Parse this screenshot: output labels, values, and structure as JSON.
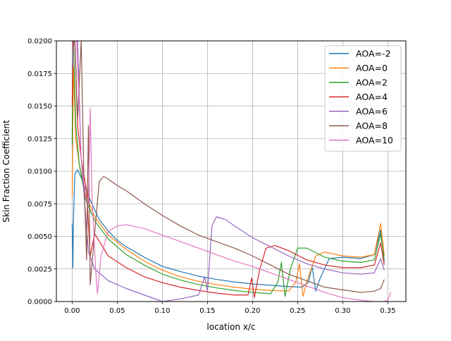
{
  "chart_data": {
    "type": "line",
    "title": "",
    "xlabel": "location x/c",
    "ylabel": "Skin Fraction Coefficient",
    "xlim": [
      -0.0175,
      0.37
    ],
    "ylim": [
      0,
      0.02
    ],
    "xticks": [
      0.0,
      0.05,
      0.1,
      0.15,
      0.2,
      0.25,
      0.3,
      0.35
    ],
    "xtick_labels": [
      "0.00",
      "0.05",
      "0.10",
      "0.15",
      "0.20",
      "0.25",
      "0.30",
      "0.35"
    ],
    "yticks": [
      0.0,
      0.0025,
      0.005,
      0.0075,
      0.01,
      0.0125,
      0.015,
      0.0175,
      0.02
    ],
    "ytick_labels": [
      "0.0000",
      "0.0025",
      "0.0050",
      "0.0075",
      "0.0100",
      "0.0125",
      "0.0150",
      "0.0175",
      "0.0200"
    ],
    "grid": true,
    "legend": "top-right",
    "series": [
      {
        "name": "AOA=-2",
        "color": "#1f77b4",
        "points": [
          [
            0.0,
            0.006
          ],
          [
            0.0008,
            0.0026
          ],
          [
            0.0015,
            0.0065
          ],
          [
            0.003,
            0.0098
          ],
          [
            0.006,
            0.0101
          ],
          [
            0.01,
            0.0095
          ],
          [
            0.02,
            0.0078
          ],
          [
            0.03,
            0.0063
          ],
          [
            0.04,
            0.0054
          ],
          [
            0.05,
            0.0047
          ],
          [
            0.06,
            0.0042
          ],
          [
            0.08,
            0.0034
          ],
          [
            0.1,
            0.0027
          ],
          [
            0.12,
            0.0023
          ],
          [
            0.14,
            0.00195
          ],
          [
            0.16,
            0.0017
          ],
          [
            0.18,
            0.0015
          ],
          [
            0.2,
            0.00135
          ],
          [
            0.22,
            0.00125
          ],
          [
            0.24,
            0.00115
          ],
          [
            0.255,
            0.0011
          ],
          [
            0.262,
            0.0015
          ],
          [
            0.266,
            0.0027
          ],
          [
            0.27,
            0.0008
          ],
          [
            0.275,
            0.0018
          ],
          [
            0.285,
            0.0033
          ],
          [
            0.3,
            0.0034
          ],
          [
            0.32,
            0.0033
          ],
          [
            0.335,
            0.0036
          ],
          [
            0.342,
            0.0055
          ],
          [
            0.346,
            0.003
          ]
        ]
      },
      {
        "name": "AOA=0",
        "color": "#ff7f0e",
        "points": [
          [
            0.0,
            0.008
          ],
          [
            0.0008,
            0.014
          ],
          [
            0.0015,
            0.018
          ],
          [
            0.004,
            0.0125
          ],
          [
            0.008,
            0.0105
          ],
          [
            0.015,
            0.0082
          ],
          [
            0.025,
            0.0065
          ],
          [
            0.04,
            0.0051
          ],
          [
            0.06,
            0.004
          ],
          [
            0.08,
            0.0031
          ],
          [
            0.1,
            0.0024
          ],
          [
            0.12,
            0.0019
          ],
          [
            0.14,
            0.00155
          ],
          [
            0.16,
            0.0013
          ],
          [
            0.18,
            0.0011
          ],
          [
            0.2,
            0.00095
          ],
          [
            0.22,
            0.00085
          ],
          [
            0.24,
            0.0008
          ],
          [
            0.248,
            0.0015
          ],
          [
            0.252,
            0.0029
          ],
          [
            0.256,
            0.0004
          ],
          [
            0.26,
            0.0015
          ],
          [
            0.27,
            0.0035
          ],
          [
            0.28,
            0.0038
          ],
          [
            0.3,
            0.0035
          ],
          [
            0.32,
            0.0034
          ],
          [
            0.335,
            0.0036
          ],
          [
            0.342,
            0.006
          ],
          [
            0.346,
            0.0035
          ]
        ]
      },
      {
        "name": "AOA=2",
        "color": "#2ca02c",
        "points": [
          [
            0.0,
            0.012
          ],
          [
            0.0008,
            0.02
          ],
          [
            0.0015,
            0.02
          ],
          [
            0.004,
            0.0135
          ],
          [
            0.008,
            0.0105
          ],
          [
            0.015,
            0.0078
          ],
          [
            0.025,
            0.0062
          ],
          [
            0.04,
            0.0048
          ],
          [
            0.06,
            0.0036
          ],
          [
            0.08,
            0.0028
          ],
          [
            0.1,
            0.0021
          ],
          [
            0.12,
            0.00165
          ],
          [
            0.14,
            0.0013
          ],
          [
            0.16,
            0.00105
          ],
          [
            0.18,
            0.00085
          ],
          [
            0.2,
            0.0007
          ],
          [
            0.22,
            0.0006
          ],
          [
            0.228,
            0.0015
          ],
          [
            0.232,
            0.003
          ],
          [
            0.236,
            0.0004
          ],
          [
            0.242,
            0.0025
          ],
          [
            0.25,
            0.0041
          ],
          [
            0.26,
            0.0041
          ],
          [
            0.28,
            0.0034
          ],
          [
            0.3,
            0.0031
          ],
          [
            0.32,
            0.003
          ],
          [
            0.335,
            0.0032
          ],
          [
            0.342,
            0.0052
          ],
          [
            0.346,
            0.0032
          ]
        ]
      },
      {
        "name": "AOA=4",
        "color": "#d62728",
        "points": [
          [
            0.0,
            0.015
          ],
          [
            0.001,
            0.02
          ],
          [
            0.003,
            0.02
          ],
          [
            0.006,
            0.0135
          ],
          [
            0.01,
            0.011
          ],
          [
            0.016,
            0.0085
          ],
          [
            0.02,
            0.0035
          ],
          [
            0.025,
            0.0052
          ],
          [
            0.04,
            0.0035
          ],
          [
            0.06,
            0.0026
          ],
          [
            0.08,
            0.0019
          ],
          [
            0.1,
            0.00145
          ],
          [
            0.12,
            0.0011
          ],
          [
            0.14,
            0.00085
          ],
          [
            0.16,
            0.00065
          ],
          [
            0.18,
            0.0005
          ],
          [
            0.195,
            0.0005
          ],
          [
            0.199,
            0.0018
          ],
          [
            0.202,
            0.0003
          ],
          [
            0.208,
            0.0025
          ],
          [
            0.215,
            0.0041
          ],
          [
            0.225,
            0.0043
          ],
          [
            0.24,
            0.0039
          ],
          [
            0.26,
            0.0032
          ],
          [
            0.28,
            0.0028
          ],
          [
            0.3,
            0.0026
          ],
          [
            0.32,
            0.0026
          ],
          [
            0.335,
            0.0028
          ],
          [
            0.342,
            0.0045
          ],
          [
            0.346,
            0.0028
          ]
        ]
      },
      {
        "name": "AOA=6",
        "color": "#9467bd",
        "points": [
          [
            0.0,
            0.018
          ],
          [
            0.002,
            0.02
          ],
          [
            0.006,
            0.02
          ],
          [
            0.01,
            0.011
          ],
          [
            0.014,
            0.0075
          ],
          [
            0.018,
            0.0038
          ],
          [
            0.025,
            0.0025
          ],
          [
            0.04,
            0.0016
          ],
          [
            0.06,
            0.001
          ],
          [
            0.08,
            0.0005
          ],
          [
            0.1,
            0.0
          ],
          [
            0.12,
            0.0002
          ],
          [
            0.14,
            0.0005
          ],
          [
            0.147,
            0.0019
          ],
          [
            0.15,
            0.0008
          ],
          [
            0.155,
            0.0058
          ],
          [
            0.16,
            0.0065
          ],
          [
            0.17,
            0.0063
          ],
          [
            0.18,
            0.0058
          ],
          [
            0.2,
            0.0049
          ],
          [
            0.22,
            0.0042
          ],
          [
            0.24,
            0.0035
          ],
          [
            0.26,
            0.0029
          ],
          [
            0.28,
            0.0025
          ],
          [
            0.3,
            0.0022
          ],
          [
            0.32,
            0.0021
          ],
          [
            0.335,
            0.0022
          ],
          [
            0.342,
            0.0033
          ],
          [
            0.346,
            0.0024
          ]
        ]
      },
      {
        "name": "AOA=8",
        "color": "#8c564b",
        "points": [
          [
            0.0,
            0.02
          ],
          [
            0.003,
            0.02
          ],
          [
            0.006,
            0.014
          ],
          [
            0.01,
            0.02
          ],
          [
            0.013,
            0.0095
          ],
          [
            0.016,
            0.0032
          ],
          [
            0.018,
            0.0135
          ],
          [
            0.02,
            0.0013
          ],
          [
            0.024,
            0.0045
          ],
          [
            0.03,
            0.0092
          ],
          [
            0.035,
            0.0096
          ],
          [
            0.04,
            0.0094
          ],
          [
            0.05,
            0.0089
          ],
          [
            0.06,
            0.0085
          ],
          [
            0.08,
            0.0075
          ],
          [
            0.1,
            0.0066
          ],
          [
            0.12,
            0.0058
          ],
          [
            0.14,
            0.0051
          ],
          [
            0.16,
            0.0046
          ],
          [
            0.18,
            0.0041
          ],
          [
            0.2,
            0.0035
          ],
          [
            0.22,
            0.0028
          ],
          [
            0.24,
            0.0021
          ],
          [
            0.26,
            0.0016
          ],
          [
            0.28,
            0.0011
          ],
          [
            0.3,
            0.0009
          ],
          [
            0.32,
            0.0007
          ],
          [
            0.335,
            0.0008
          ],
          [
            0.342,
            0.001
          ],
          [
            0.346,
            0.0017
          ]
        ]
      },
      {
        "name": "AOA=10",
        "color": "#e377c2",
        "points": [
          [
            0.0,
            0.02
          ],
          [
            0.005,
            0.02
          ],
          [
            0.01,
            0.011
          ],
          [
            0.015,
            0.008
          ],
          [
            0.018,
            0.0075
          ],
          [
            0.02,
            0.0148
          ],
          [
            0.022,
            0.008
          ],
          [
            0.026,
            0.0025
          ],
          [
            0.028,
            0.0006
          ],
          [
            0.032,
            0.0035
          ],
          [
            0.04,
            0.0054
          ],
          [
            0.05,
            0.0058
          ],
          [
            0.06,
            0.0059
          ],
          [
            0.08,
            0.0056
          ],
          [
            0.1,
            0.0051
          ],
          [
            0.12,
            0.0046
          ],
          [
            0.14,
            0.0041
          ],
          [
            0.16,
            0.0036
          ],
          [
            0.18,
            0.0031
          ],
          [
            0.2,
            0.0027
          ],
          [
            0.22,
            0.0022
          ],
          [
            0.24,
            0.0017
          ],
          [
            0.26,
            0.0012
          ],
          [
            0.28,
            0.0007
          ],
          [
            0.3,
            0.0003
          ],
          [
            0.32,
            0.0001
          ],
          [
            0.335,
            0.0
          ],
          [
            0.345,
            0.0
          ],
          [
            0.35,
            0.0001
          ],
          [
            0.353,
            0.0007
          ]
        ]
      }
    ]
  }
}
